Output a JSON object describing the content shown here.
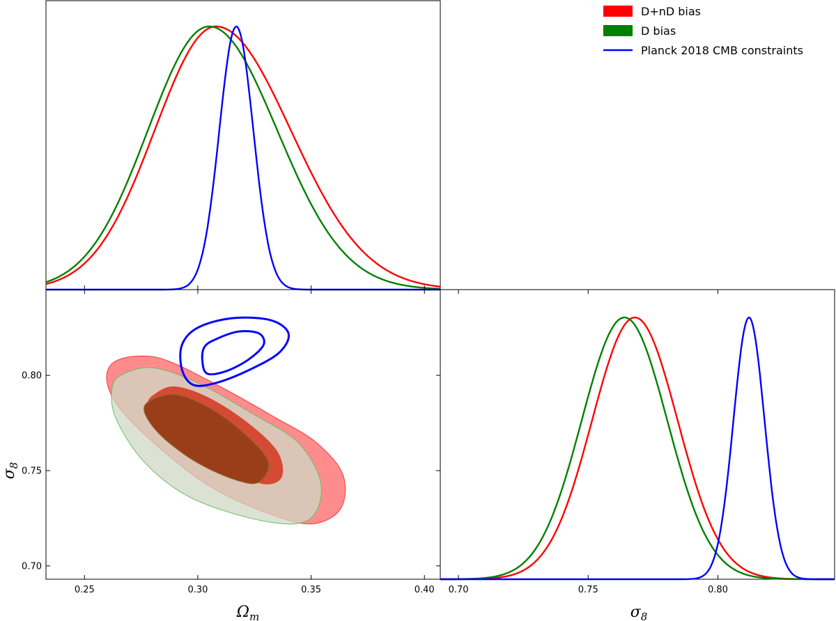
{
  "chart_data": {
    "type": "triangle-plot",
    "parameters": [
      {
        "key": "omega_m",
        "label": "Ωm",
        "range": [
          0.233,
          0.407
        ],
        "ticks": [
          0.25,
          0.3,
          0.35,
          0.4
        ],
        "tick_labels": [
          "0.25",
          "0.30",
          "0.35",
          "0.40"
        ]
      },
      {
        "key": "sigma8",
        "label": "σ8",
        "range": [
          0.693,
          0.845
        ],
        "ticks": [
          0.7,
          0.75,
          0.8
        ],
        "tick_labels": [
          "0.70",
          "0.75",
          "0.80"
        ]
      }
    ],
    "series": [
      {
        "name": "D+nD bias",
        "color": "#ff0000",
        "omega_m": {
          "peak": 0.308,
          "sigma_lo": 0.027,
          "sigma_hi": 0.033
        },
        "sigma8": {
          "peak": 0.768,
          "sigma": 0.0165
        }
      },
      {
        "name": "D bias",
        "color": "#008000",
        "omega_m": {
          "peak": 0.305,
          "sigma_lo": 0.027,
          "sigma_hi": 0.03
        },
        "sigma8": {
          "peak": 0.764,
          "sigma": 0.0165
        }
      },
      {
        "name": "Planck 2018 CMB constraints",
        "color": "#0000ff",
        "omega_m": {
          "peak": 0.317,
          "sigma_lo": 0.0075,
          "sigma_hi": 0.0075
        },
        "sigma8": {
          "peak": 0.812,
          "sigma": 0.006
        }
      }
    ],
    "contours": [
      {
        "series": "D+nD bias",
        "level": "95%",
        "fill": "#ff6666",
        "stroke": "#ff3333",
        "center": [
          0.308,
          0.762
        ],
        "points": [
          [
            0.262,
            0.806
          ],
          [
            0.272,
            0.81
          ],
          [
            0.286,
            0.808
          ],
          [
            0.31,
            0.794
          ],
          [
            0.334,
            0.778
          ],
          [
            0.352,
            0.765
          ],
          [
            0.364,
            0.748
          ],
          [
            0.363,
            0.73
          ],
          [
            0.35,
            0.722
          ],
          [
            0.33,
            0.728
          ],
          [
            0.305,
            0.742
          ],
          [
            0.283,
            0.762
          ],
          [
            0.266,
            0.782
          ],
          [
            0.26,
            0.796
          ]
        ]
      },
      {
        "series": "D bias",
        "level": "95%",
        "fill": "#cfd8c4",
        "stroke": "#66bb66",
        "center": [
          0.305,
          0.76
        ],
        "points": [
          [
            0.266,
            0.8
          ],
          [
            0.28,
            0.804
          ],
          [
            0.3,
            0.796
          ],
          [
            0.324,
            0.78
          ],
          [
            0.344,
            0.765
          ],
          [
            0.354,
            0.745
          ],
          [
            0.352,
            0.728
          ],
          [
            0.342,
            0.722
          ],
          [
            0.32,
            0.726
          ],
          [
            0.295,
            0.737
          ],
          [
            0.276,
            0.755
          ],
          [
            0.264,
            0.777
          ],
          [
            0.262,
            0.792
          ]
        ]
      },
      {
        "series": "D+nD bias",
        "level": "68%",
        "fill": "#d44a33",
        "stroke": "#d44a33",
        "center": [
          0.308,
          0.766
        ],
        "points": [
          [
            0.281,
            0.79
          ],
          [
            0.29,
            0.794
          ],
          [
            0.305,
            0.788
          ],
          [
            0.322,
            0.775
          ],
          [
            0.335,
            0.76
          ],
          [
            0.337,
            0.747
          ],
          [
            0.33,
            0.743
          ],
          [
            0.318,
            0.748
          ],
          [
            0.3,
            0.758
          ],
          [
            0.284,
            0.773
          ],
          [
            0.278,
            0.784
          ]
        ]
      },
      {
        "series": "D bias",
        "level": "68%",
        "fill": "#9a3e1a",
        "stroke": "#8a6a2a",
        "center": [
          0.304,
          0.763
        ],
        "points": [
          [
            0.278,
            0.786
          ],
          [
            0.29,
            0.79
          ],
          [
            0.305,
            0.783
          ],
          [
            0.32,
            0.77
          ],
          [
            0.331,
            0.755
          ],
          [
            0.327,
            0.744
          ],
          [
            0.317,
            0.745
          ],
          [
            0.3,
            0.754
          ],
          [
            0.285,
            0.767
          ],
          [
            0.277,
            0.779
          ]
        ]
      },
      {
        "series": "Planck 2018 CMB constraints",
        "level": "95%",
        "fill": "none",
        "stroke": "#0000ff",
        "center": [
          0.318,
          0.811
        ],
        "points": [
          [
            0.3,
            0.825
          ],
          [
            0.315,
            0.83
          ],
          [
            0.332,
            0.829
          ],
          [
            0.34,
            0.822
          ],
          [
            0.336,
            0.812
          ],
          [
            0.323,
            0.803
          ],
          [
            0.308,
            0.796
          ],
          [
            0.298,
            0.795
          ],
          [
            0.293,
            0.803
          ],
          [
            0.293,
            0.816
          ]
        ]
      },
      {
        "series": "Planck 2018 CMB constraints",
        "level": "68%",
        "fill": "none",
        "stroke": "#0000ff",
        "center": [
          0.318,
          0.811
        ],
        "points": [
          [
            0.308,
            0.819
          ],
          [
            0.318,
            0.823
          ],
          [
            0.327,
            0.822
          ],
          [
            0.329,
            0.816
          ],
          [
            0.322,
            0.808
          ],
          [
            0.312,
            0.802
          ],
          [
            0.304,
            0.801
          ],
          [
            0.302,
            0.808
          ],
          [
            0.303,
            0.815
          ]
        ]
      }
    ],
    "legend": {
      "placement": "top-right",
      "entries": [
        {
          "label": "D+nD bias",
          "color": "#ff0000",
          "kind": "patch"
        },
        {
          "label": "D bias",
          "color": "#008000",
          "kind": "patch"
        },
        {
          "label": "Planck 2018 CMB constraints",
          "color": "#0000ff",
          "kind": "line"
        }
      ]
    }
  }
}
